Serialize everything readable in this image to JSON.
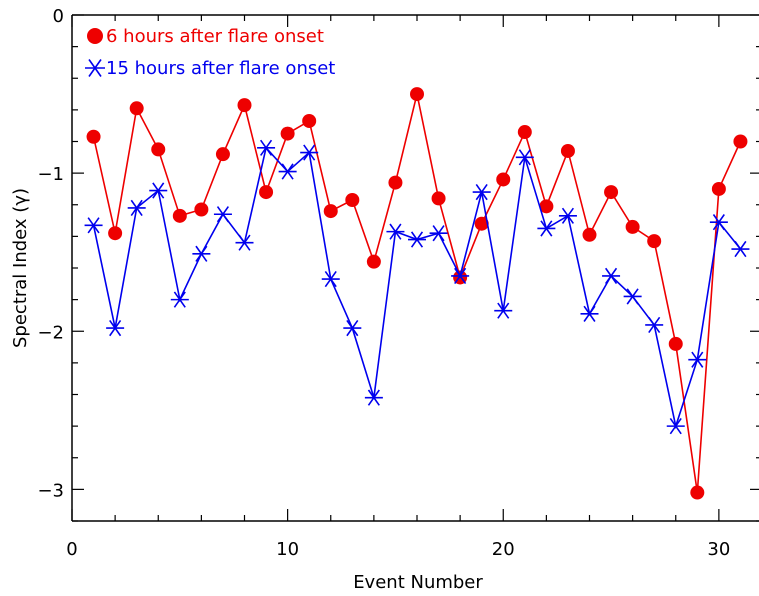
{
  "chart_data": {
    "type": "line",
    "xlabel": "Event Number",
    "ylabel": "Spectral Index (γ)",
    "xlim": [
      0,
      32
    ],
    "ylim": [
      -3.2,
      0
    ],
    "xticks": [
      0,
      10,
      20,
      30
    ],
    "yticks": [
      0,
      -1,
      -2,
      -3
    ],
    "legend_position": "top-left",
    "grid": false,
    "x": [
      1,
      2,
      3,
      4,
      5,
      6,
      7,
      8,
      9,
      10,
      11,
      12,
      13,
      14,
      15,
      16,
      17,
      18,
      19,
      20,
      21,
      22,
      23,
      24,
      25,
      26,
      27,
      28,
      29,
      30,
      31
    ],
    "series": [
      {
        "name": "6 hours after flare onset",
        "color": "#ee0000",
        "marker": "circle",
        "values": [
          -0.77,
          -1.38,
          -0.59,
          -0.85,
          -1.27,
          -1.23,
          -0.88,
          -0.57,
          -1.12,
          -0.75,
          -0.67,
          -1.24,
          -1.17,
          -1.56,
          -1.06,
          -0.5,
          -1.16,
          -1.66,
          -1.32,
          -1.04,
          -0.74,
          -1.21,
          -0.86,
          -1.39,
          -1.12,
          -1.34,
          -1.43,
          -2.08,
          -3.02,
          -1.1,
          -0.8
        ]
      },
      {
        "name": "15 hours after flare onset",
        "color": "#0000ee",
        "marker": "asterisk",
        "values": [
          -1.33,
          -1.98,
          -1.22,
          -1.11,
          -1.8,
          -1.51,
          -1.26,
          -1.44,
          -0.84,
          -0.99,
          -0.87,
          -1.67,
          -1.98,
          -2.42,
          -1.37,
          -1.42,
          -1.38,
          -1.65,
          -1.12,
          -1.87,
          -0.9,
          -1.35,
          -1.27,
          -1.89,
          -1.65,
          -1.78,
          -1.96,
          -2.6,
          -2.18,
          -1.31,
          -1.48
        ]
      }
    ]
  }
}
